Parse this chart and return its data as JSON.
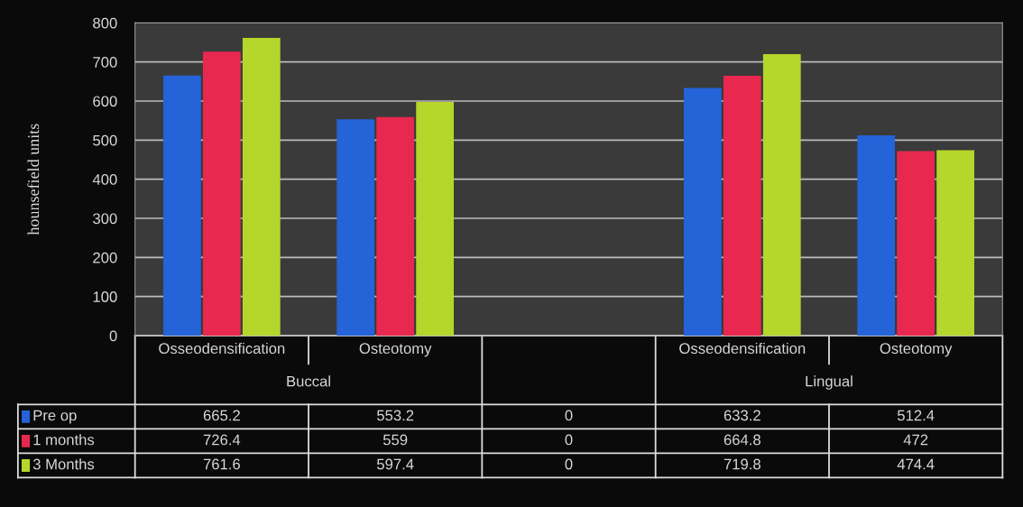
{
  "chart_data": {
    "type": "bar",
    "ylabel": "hounsefield units",
    "categories": [
      "Osseodensification",
      "Osteotomy",
      null,
      "Osseodensification",
      "Osteotomy"
    ],
    "annotations": [
      "Buccal",
      "Lingual"
    ],
    "series": [
      {
        "name": "Pre op",
        "color": "#2563d8",
        "values": [
          665.2,
          553.2,
          0,
          633.2,
          512.4
        ]
      },
      {
        "name": "1 months",
        "color": "#e8284f",
        "values": [
          726.4,
          559,
          0,
          664.8,
          472
        ]
      },
      {
        "name": "3 Months",
        "color": "#b5d62a",
        "values": [
          761.6,
          597.4,
          0,
          719.8,
          474.4
        ]
      }
    ],
    "ylim": [
      0,
      800
    ],
    "yticks": [
      0,
      100,
      200,
      300,
      400,
      500,
      600,
      700,
      800
    ],
    "grid": "y",
    "legend": "bottom left",
    "data_labels": true
  }
}
